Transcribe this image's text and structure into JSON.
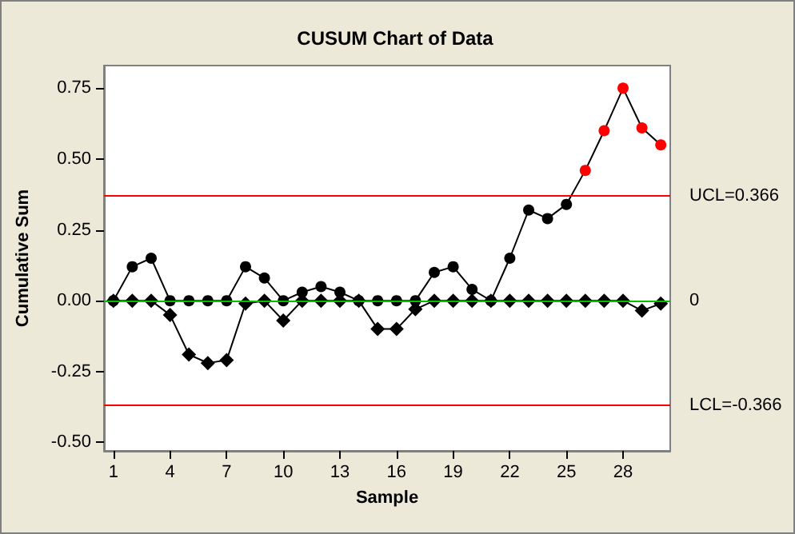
{
  "chart_data": {
    "type": "line",
    "title": "CUSUM Chart of Data",
    "xlabel": "Sample",
    "ylabel": "Cumulative Sum",
    "x": [
      1,
      2,
      3,
      4,
      5,
      6,
      7,
      8,
      9,
      10,
      11,
      12,
      13,
      14,
      15,
      16,
      17,
      18,
      19,
      20,
      21,
      22,
      23,
      24,
      25,
      26,
      27,
      28,
      29,
      30
    ],
    "series": [
      {
        "color": "#000000",
        "marker": "circle",
        "values": [
          0,
          0.12,
          0.15,
          0,
          0,
          0,
          0,
          0.12,
          0.08,
          0,
          0.03,
          0.05,
          0.03,
          0,
          0,
          0,
          0,
          0.1,
          0.12,
          0.04,
          0,
          0.15,
          0.32,
          0.29,
          0.34,
          0.46,
          0.6,
          0.75,
          0.61,
          0.55
        ],
        "colors": [
          "#000000",
          "#000000",
          "#000000",
          "#000000",
          "#000000",
          "#000000",
          "#000000",
          "#000000",
          "#000000",
          "#000000",
          "#000000",
          "#000000",
          "#000000",
          "#000000",
          "#000000",
          "#000000",
          "#000000",
          "#000000",
          "#000000",
          "#000000",
          "#000000",
          "#000000",
          "#000000",
          "#000000",
          "#000000",
          "#ff0000",
          "#ff0000",
          "#ff0000",
          "#ff0000",
          "#ff0000"
        ]
      },
      {
        "color": "#000000",
        "marker": "diamond",
        "values": [
          0,
          0,
          0,
          -0.05,
          -0.19,
          -0.22,
          -0.21,
          -0.01,
          0,
          -0.07,
          0,
          0,
          0,
          0,
          -0.1,
          -0.1,
          -0.03,
          0,
          0,
          0,
          0,
          0,
          0,
          0,
          0,
          0,
          0,
          0,
          -0.035,
          -0.01
        ]
      }
    ],
    "xlim": [
      0.5,
      30.5
    ],
    "xticks": [
      1,
      4,
      7,
      10,
      13,
      16,
      19,
      22,
      25,
      28
    ],
    "ylim": [
      -0.53,
      0.83
    ],
    "yticks": [
      {
        "value": -0.5,
        "label": "-0.50"
      },
      -0.25,
      {
        "value": 0,
        "label": "0.00"
      },
      0.25,
      {
        "value": 0.5,
        "label": "0.50"
      },
      0.75
    ],
    "ref_lines": [
      {
        "axis": "y",
        "value": 0.366,
        "label": "UCL=0.366",
        "color": "#ff0000"
      },
      {
        "axis": "y",
        "value": 0,
        "label": "0",
        "color": "#00c000"
      },
      {
        "axis": "y",
        "value": -0.366,
        "label": "LCL=-0.366",
        "color": "#ff0000"
      }
    ],
    "grid": false
  }
}
